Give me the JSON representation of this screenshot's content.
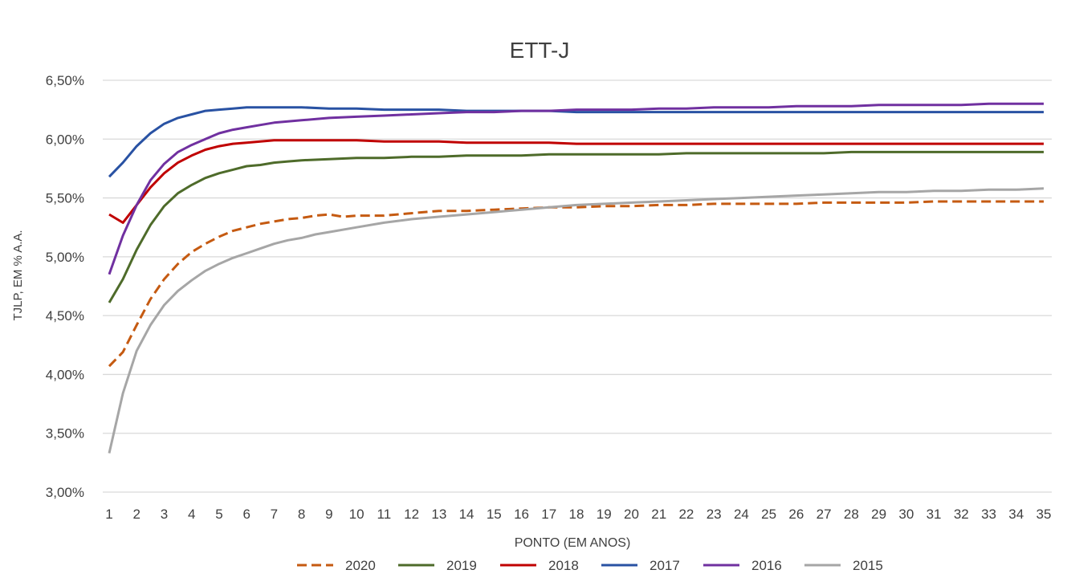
{
  "chart_data": {
    "type": "line",
    "title": "ETT-J",
    "xlabel": "PONTO (EM ANOS)",
    "ylabel": "TJLP, EM % A.A.",
    "ylim": [
      3.0,
      6.5
    ],
    "xlim": [
      1,
      35
    ],
    "y_ticks": [
      "3,00%",
      "3,50%",
      "4,00%",
      "4,50%",
      "5,00%",
      "5,50%",
      "6,00%",
      "6,50%"
    ],
    "x_ticks": [
      "1",
      "2",
      "3",
      "4",
      "5",
      "6",
      "7",
      "8",
      "9",
      "10",
      "11",
      "12",
      "13",
      "14",
      "15",
      "16",
      "17",
      "18",
      "19",
      "20",
      "21",
      "22",
      "23",
      "24",
      "25",
      "26",
      "27",
      "28",
      "29",
      "30",
      "31",
      "32",
      "33",
      "34",
      "35"
    ],
    "grid": true,
    "legend_position": "bottom",
    "series": [
      {
        "name": "2020",
        "color": "#C55A11",
        "dashed": true,
        "points": [
          [
            1,
            4.07
          ],
          [
            1.5,
            4.19
          ],
          [
            2,
            4.42
          ],
          [
            2.5,
            4.64
          ],
          [
            3,
            4.81
          ],
          [
            3.5,
            4.94
          ],
          [
            4,
            5.04
          ],
          [
            4.5,
            5.11
          ],
          [
            5,
            5.17
          ],
          [
            5.5,
            5.22
          ],
          [
            6,
            5.25
          ],
          [
            6.5,
            5.28
          ],
          [
            7,
            5.3
          ],
          [
            7.5,
            5.32
          ],
          [
            8,
            5.33
          ],
          [
            8.5,
            5.35
          ],
          [
            9,
            5.36
          ],
          [
            9.5,
            5.34
          ],
          [
            10,
            5.35
          ],
          [
            11,
            5.35
          ],
          [
            12,
            5.37
          ],
          [
            13,
            5.39
          ],
          [
            14,
            5.39
          ],
          [
            15,
            5.4
          ],
          [
            16,
            5.41
          ],
          [
            17,
            5.42
          ],
          [
            18,
            5.42
          ],
          [
            19,
            5.43
          ],
          [
            20,
            5.43
          ],
          [
            21,
            5.44
          ],
          [
            22,
            5.44
          ],
          [
            23,
            5.45
          ],
          [
            24,
            5.45
          ],
          [
            25,
            5.45
          ],
          [
            26,
            5.45
          ],
          [
            27,
            5.46
          ],
          [
            28,
            5.46
          ],
          [
            29,
            5.46
          ],
          [
            30,
            5.46
          ],
          [
            31,
            5.47
          ],
          [
            32,
            5.47
          ],
          [
            33,
            5.47
          ],
          [
            34,
            5.47
          ],
          [
            35,
            5.47
          ]
        ]
      },
      {
        "name": "2019",
        "color": "#4E6B2A",
        "dashed": false,
        "points": [
          [
            1,
            4.61
          ],
          [
            1.5,
            4.81
          ],
          [
            2,
            5.06
          ],
          [
            2.5,
            5.27
          ],
          [
            3,
            5.43
          ],
          [
            3.5,
            5.54
          ],
          [
            4,
            5.61
          ],
          [
            4.5,
            5.67
          ],
          [
            5,
            5.71
          ],
          [
            5.5,
            5.74
          ],
          [
            6,
            5.77
          ],
          [
            6.5,
            5.78
          ],
          [
            7,
            5.8
          ],
          [
            7.5,
            5.81
          ],
          [
            8,
            5.82
          ],
          [
            9,
            5.83
          ],
          [
            10,
            5.84
          ],
          [
            11,
            5.84
          ],
          [
            12,
            5.85
          ],
          [
            13,
            5.85
          ],
          [
            14,
            5.86
          ],
          [
            15,
            5.86
          ],
          [
            16,
            5.86
          ],
          [
            17,
            5.87
          ],
          [
            18,
            5.87
          ],
          [
            19,
            5.87
          ],
          [
            20,
            5.87
          ],
          [
            21,
            5.87
          ],
          [
            22,
            5.88
          ],
          [
            23,
            5.88
          ],
          [
            24,
            5.88
          ],
          [
            25,
            5.88
          ],
          [
            26,
            5.88
          ],
          [
            27,
            5.88
          ],
          [
            28,
            5.89
          ],
          [
            29,
            5.89
          ],
          [
            30,
            5.89
          ],
          [
            31,
            5.89
          ],
          [
            32,
            5.89
          ],
          [
            33,
            5.89
          ],
          [
            34,
            5.89
          ],
          [
            35,
            5.89
          ]
        ]
      },
      {
        "name": "2018",
        "color": "#C00000",
        "dashed": false,
        "points": [
          [
            1,
            5.36
          ],
          [
            1.5,
            5.29
          ],
          [
            2,
            5.44
          ],
          [
            2.5,
            5.59
          ],
          [
            3,
            5.71
          ],
          [
            3.5,
            5.8
          ],
          [
            4,
            5.86
          ],
          [
            4.5,
            5.91
          ],
          [
            5,
            5.94
          ],
          [
            5.5,
            5.96
          ],
          [
            6,
            5.97
          ],
          [
            6.5,
            5.98
          ],
          [
            7,
            5.99
          ],
          [
            8,
            5.99
          ],
          [
            9,
            5.99
          ],
          [
            10,
            5.99
          ],
          [
            11,
            5.98
          ],
          [
            12,
            5.98
          ],
          [
            13,
            5.98
          ],
          [
            14,
            5.97
          ],
          [
            15,
            5.97
          ],
          [
            16,
            5.97
          ],
          [
            17,
            5.97
          ],
          [
            18,
            5.96
          ],
          [
            19,
            5.96
          ],
          [
            20,
            5.96
          ],
          [
            21,
            5.96
          ],
          [
            22,
            5.96
          ],
          [
            23,
            5.96
          ],
          [
            24,
            5.96
          ],
          [
            25,
            5.96
          ],
          [
            26,
            5.96
          ],
          [
            27,
            5.96
          ],
          [
            28,
            5.96
          ],
          [
            29,
            5.96
          ],
          [
            30,
            5.96
          ],
          [
            31,
            5.96
          ],
          [
            32,
            5.96
          ],
          [
            33,
            5.96
          ],
          [
            34,
            5.96
          ],
          [
            35,
            5.96
          ]
        ]
      },
      {
        "name": "2017",
        "color": "#2952A3",
        "dashed": false,
        "points": [
          [
            1,
            5.68
          ],
          [
            1.5,
            5.8
          ],
          [
            2,
            5.94
          ],
          [
            2.5,
            6.05
          ],
          [
            3,
            6.13
          ],
          [
            3.5,
            6.18
          ],
          [
            4,
            6.21
          ],
          [
            4.5,
            6.24
          ],
          [
            5,
            6.25
          ],
          [
            5.5,
            6.26
          ],
          [
            6,
            6.27
          ],
          [
            7,
            6.27
          ],
          [
            8,
            6.27
          ],
          [
            9,
            6.26
          ],
          [
            10,
            6.26
          ],
          [
            11,
            6.25
          ],
          [
            12,
            6.25
          ],
          [
            13,
            6.25
          ],
          [
            14,
            6.24
          ],
          [
            15,
            6.24
          ],
          [
            16,
            6.24
          ],
          [
            17,
            6.24
          ],
          [
            18,
            6.23
          ],
          [
            19,
            6.23
          ],
          [
            20,
            6.23
          ],
          [
            21,
            6.23
          ],
          [
            22,
            6.23
          ],
          [
            23,
            6.23
          ],
          [
            24,
            6.23
          ],
          [
            25,
            6.23
          ],
          [
            26,
            6.23
          ],
          [
            27,
            6.23
          ],
          [
            28,
            6.23
          ],
          [
            29,
            6.23
          ],
          [
            30,
            6.23
          ],
          [
            31,
            6.23
          ],
          [
            32,
            6.23
          ],
          [
            33,
            6.23
          ],
          [
            34,
            6.23
          ],
          [
            35,
            6.23
          ]
        ]
      },
      {
        "name": "2016",
        "color": "#7030A0",
        "dashed": false,
        "points": [
          [
            1,
            4.85
          ],
          [
            1.5,
            5.18
          ],
          [
            2,
            5.44
          ],
          [
            2.5,
            5.65
          ],
          [
            3,
            5.79
          ],
          [
            3.5,
            5.89
          ],
          [
            4,
            5.95
          ],
          [
            4.5,
            6.0
          ],
          [
            5,
            6.05
          ],
          [
            5.5,
            6.08
          ],
          [
            6,
            6.1
          ],
          [
            6.5,
            6.12
          ],
          [
            7,
            6.14
          ],
          [
            8,
            6.16
          ],
          [
            9,
            6.18
          ],
          [
            10,
            6.19
          ],
          [
            11,
            6.2
          ],
          [
            12,
            6.21
          ],
          [
            13,
            6.22
          ],
          [
            14,
            6.23
          ],
          [
            15,
            6.23
          ],
          [
            16,
            6.24
          ],
          [
            17,
            6.24
          ],
          [
            18,
            6.25
          ],
          [
            19,
            6.25
          ],
          [
            20,
            6.25
          ],
          [
            21,
            6.26
          ],
          [
            22,
            6.26
          ],
          [
            23,
            6.27
          ],
          [
            24,
            6.27
          ],
          [
            25,
            6.27
          ],
          [
            26,
            6.28
          ],
          [
            27,
            6.28
          ],
          [
            28,
            6.28
          ],
          [
            29,
            6.29
          ],
          [
            30,
            6.29
          ],
          [
            31,
            6.29
          ],
          [
            32,
            6.29
          ],
          [
            33,
            6.3
          ],
          [
            34,
            6.3
          ],
          [
            35,
            6.3
          ]
        ]
      },
      {
        "name": "2015",
        "color": "#A6A6A6",
        "dashed": false,
        "points": [
          [
            1,
            3.33
          ],
          [
            1.5,
            3.84
          ],
          [
            2,
            4.2
          ],
          [
            2.5,
            4.42
          ],
          [
            3,
            4.59
          ],
          [
            3.5,
            4.71
          ],
          [
            4,
            4.8
          ],
          [
            4.5,
            4.88
          ],
          [
            5,
            4.94
          ],
          [
            5.5,
            4.99
          ],
          [
            6,
            5.03
          ],
          [
            6.5,
            5.07
          ],
          [
            7,
            5.11
          ],
          [
            7.5,
            5.14
          ],
          [
            8,
            5.16
          ],
          [
            8.5,
            5.19
          ],
          [
            9,
            5.21
          ],
          [
            10,
            5.25
          ],
          [
            11,
            5.29
          ],
          [
            12,
            5.32
          ],
          [
            13,
            5.34
          ],
          [
            14,
            5.36
          ],
          [
            15,
            5.38
          ],
          [
            16,
            5.4
          ],
          [
            17,
            5.42
          ],
          [
            18,
            5.44
          ],
          [
            19,
            5.45
          ],
          [
            20,
            5.46
          ],
          [
            21,
            5.47
          ],
          [
            22,
            5.48
          ],
          [
            23,
            5.49
          ],
          [
            24,
            5.5
          ],
          [
            25,
            5.51
          ],
          [
            26,
            5.52
          ],
          [
            27,
            5.53
          ],
          [
            28,
            5.54
          ],
          [
            29,
            5.55
          ],
          [
            30,
            5.55
          ],
          [
            31,
            5.56
          ],
          [
            32,
            5.56
          ],
          [
            33,
            5.57
          ],
          [
            34,
            5.57
          ],
          [
            35,
            5.58
          ]
        ]
      }
    ]
  }
}
